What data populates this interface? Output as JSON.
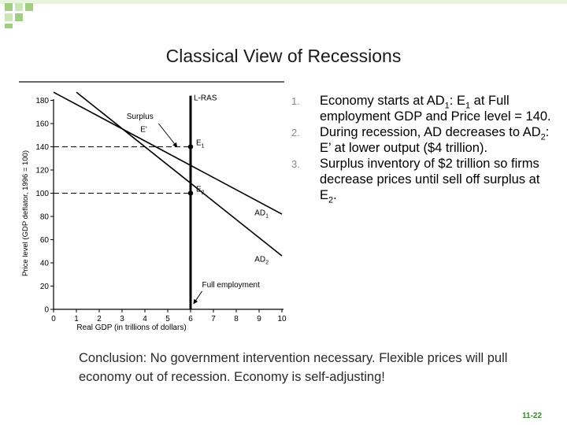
{
  "slide": {
    "title": "Classical View of Recessions",
    "slide_number": "11-22",
    "accent_color": "#9fd07f"
  },
  "graph": {
    "y_axis_label": "Price level (GDP deflator, 1996 = 100)",
    "x_axis_label": "Real GDP (in trillions of dollars)",
    "y_ticks": [
      "0",
      "20",
      "40",
      "60",
      "80",
      "100",
      "120",
      "140",
      "160",
      "180"
    ],
    "x_ticks": [
      "0",
      "1",
      "2",
      "3",
      "4",
      "5",
      "6",
      "7",
      "8",
      "9",
      "10"
    ],
    "lras_label": "L-RAS",
    "ad1_label": "AD",
    "ad1_sub": "1",
    "ad2_label": "AD",
    "ad2_sub": "2",
    "e1_label": "E",
    "e1_sub": "1",
    "e2_label": "E",
    "e2_sub": "2",
    "e_prime_label": "E'",
    "surplus_label": "Surplus",
    "full_employment_label": "Full employment",
    "full_employment_gdp": 6,
    "price_e1": 140,
    "price_e2": 100,
    "ad1_from": [
      0,
      187
    ],
    "ad1_to": [
      10,
      82
    ],
    "ad2_from": [
      1,
      187
    ],
    "ad2_to": [
      10,
      46
    ]
  },
  "points": [
    {
      "num": "1.",
      "parts": [
        {
          "t": "Economy starts at AD"
        },
        {
          "t": "1",
          "sub": true
        },
        {
          "t": ": E"
        },
        {
          "t": "1",
          "sub": true
        },
        {
          "t": " at Full employment GDP and Price level = 140."
        }
      ]
    },
    {
      "num": "2.",
      "parts": [
        {
          "t": "During recession, AD decreases to AD"
        },
        {
          "t": "2",
          "sub": true
        },
        {
          "t": ": E’ at lower output ($4 trillion)."
        }
      ]
    },
    {
      "num": "3.",
      "parts": [
        {
          "t": "Surplus inventory of $2 trillion so firms decrease prices until sell off surplus at E"
        },
        {
          "t": "2",
          "sub": true
        },
        {
          "t": "."
        }
      ]
    }
  ],
  "conclusion": "Conclusion: No government intervention necessary. Flexible prices will pull economy out of recession. Economy is self-adjusting!"
}
